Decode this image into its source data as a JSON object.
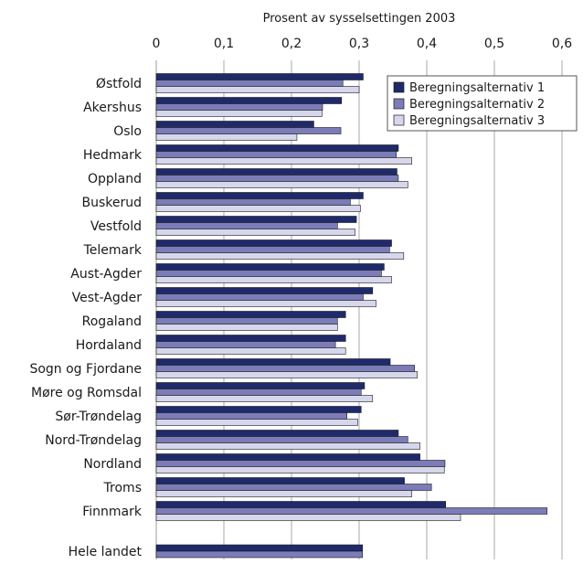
{
  "chart_data": {
    "type": "bar",
    "orientation": "horizontal",
    "title": "",
    "xlabel": "Prosent av sysselsettingen 2003",
    "ylabel": "",
    "xlim": [
      0,
      0.6
    ],
    "x_ticks": [
      "0",
      "0,1",
      "0,2",
      "0,3",
      "0,4",
      "0,5",
      "0,6"
    ],
    "x_tick_values": [
      0,
      0.1,
      0.2,
      0.3,
      0.4,
      0.5,
      0.6
    ],
    "axis_position": "top",
    "grid": true,
    "legend_position": "top-right",
    "categories": [
      "Østfold",
      "Akershus",
      "Oslo",
      "Hedmark",
      "Oppland",
      "Buskerud",
      "Vestfold",
      "Telemark",
      "Aust-Agder",
      "Vest-Agder",
      "Rogaland",
      "Hordaland",
      "Sogn og Fjordane",
      "Møre og Romsdal",
      "Sør-Trøndelag",
      "Nord-Trøndelag",
      "Nordland",
      "Troms",
      "Finnmark",
      "Hele landet"
    ],
    "series": [
      {
        "name": "Beregningsalternativ 1",
        "color": "#1f2a6b",
        "values": [
          0.306,
          0.274,
          0.233,
          0.358,
          0.356,
          0.306,
          0.296,
          0.348,
          0.337,
          0.32,
          0.28,
          0.28,
          0.346,
          0.308,
          0.303,
          0.358,
          0.39,
          0.367,
          0.428,
          0.305
        ]
      },
      {
        "name": "Beregningsalternativ 2",
        "color": "#7b7cb8",
        "values": [
          0.276,
          0.246,
          0.273,
          0.355,
          0.358,
          0.287,
          0.268,
          0.345,
          0.333,
          0.306,
          0.268,
          0.265,
          0.382,
          0.303,
          0.282,
          0.372,
          0.427,
          0.407,
          0.578,
          0.305
        ]
      },
      {
        "name": "Beregningsalternativ 3",
        "color": "#d6d6ec",
        "values": [
          0.3,
          0.245,
          0.208,
          0.378,
          0.372,
          0.302,
          0.294,
          0.366,
          0.348,
          0.325,
          0.268,
          0.28,
          0.386,
          0.32,
          0.298,
          0.39,
          0.426,
          0.378,
          0.45,
          null
        ]
      }
    ]
  }
}
